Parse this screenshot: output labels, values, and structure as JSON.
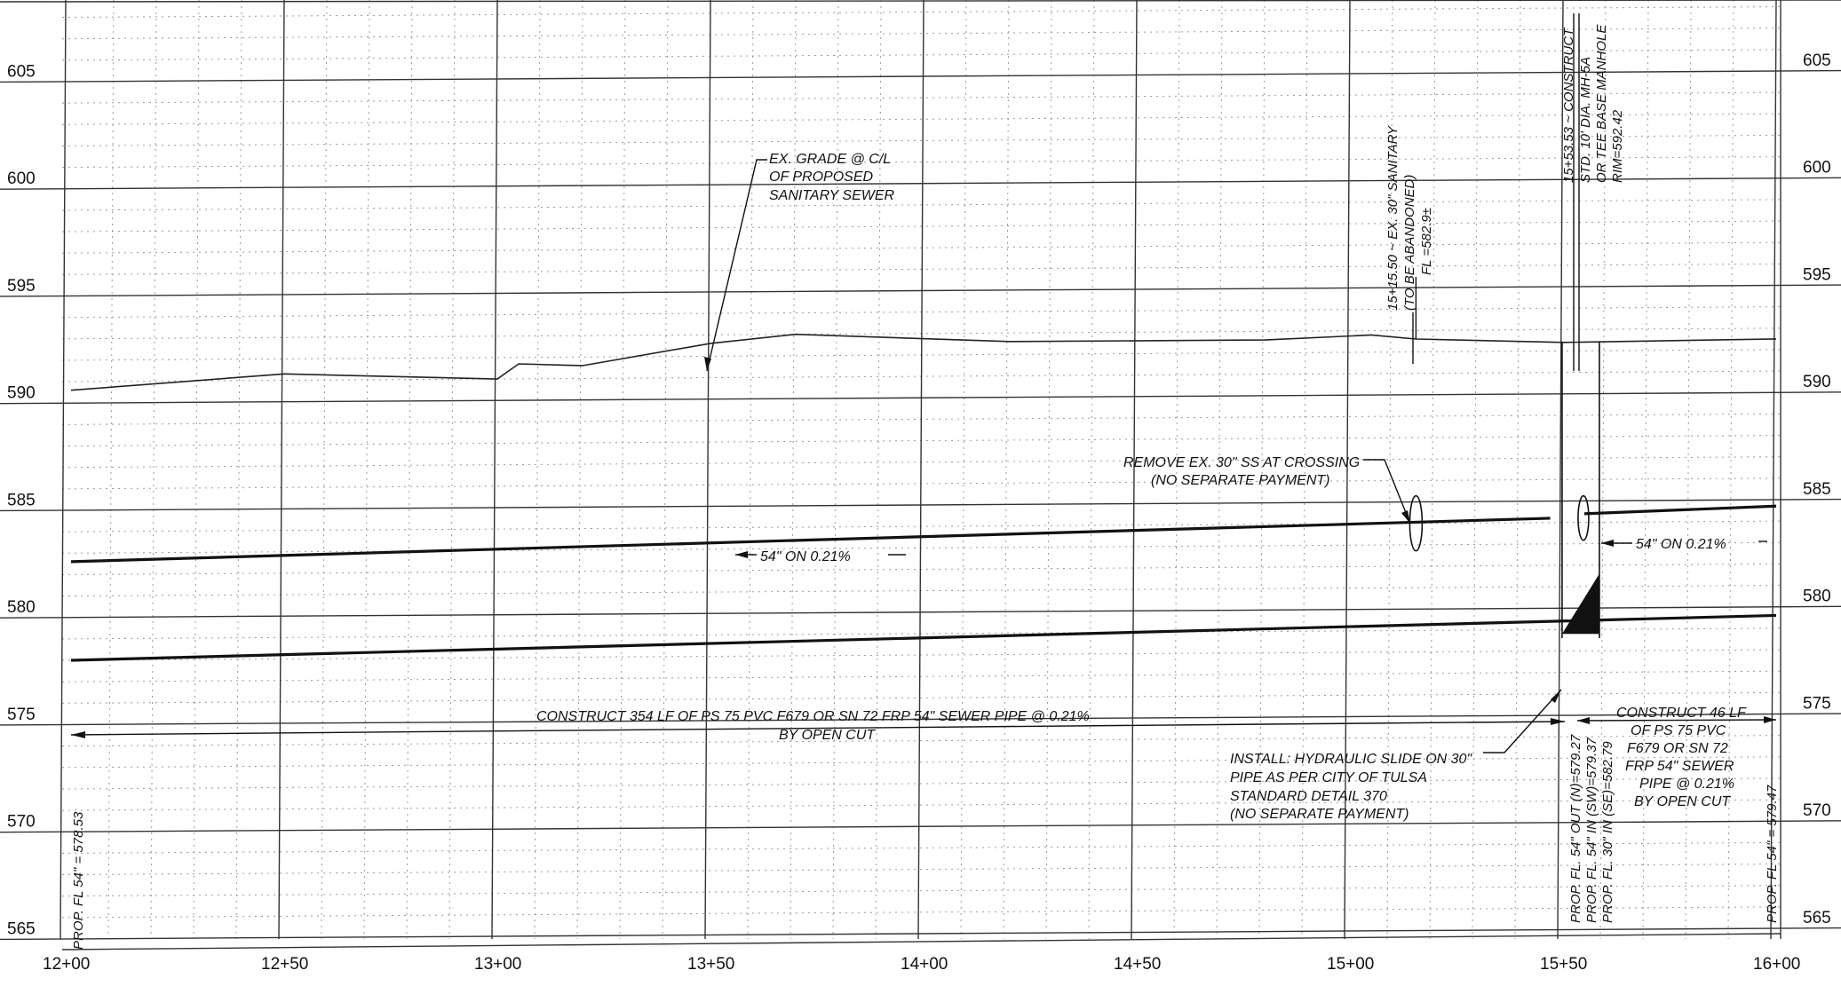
{
  "drawing": {
    "type": "sanitary-sewer-profile",
    "elevations": [
      605,
      600,
      595,
      590,
      585,
      580,
      575,
      570,
      565
    ],
    "stations": [
      "12+00",
      "12+50",
      "13+00",
      "13+50",
      "14+00",
      "14+50",
      "15+00",
      "15+50",
      "16+00"
    ],
    "ground_profile": [
      {
        "sta": 12.0,
        "elev": 590.6
      },
      {
        "sta": 12.5,
        "elev": 591.3
      },
      {
        "sta": 13.0,
        "elev": 591.0
      },
      {
        "sta": 13.05,
        "elev": 591.7
      },
      {
        "sta": 13.2,
        "elev": 591.6
      },
      {
        "sta": 13.5,
        "elev": 592.6
      },
      {
        "sta": 13.7,
        "elev": 593.0
      },
      {
        "sta": 14.2,
        "elev": 592.6
      },
      {
        "sta": 14.8,
        "elev": 592.6
      },
      {
        "sta": 15.05,
        "elev": 592.8
      },
      {
        "sta": 15.155,
        "elev": 592.6
      },
      {
        "sta": 15.5,
        "elev": 592.4
      },
      {
        "sta": 16.0,
        "elev": 592.5
      }
    ],
    "pipe_crown_left": {
      "start": {
        "sta": 12.0,
        "elev": 582.6
      },
      "end": {
        "sta": 15.47,
        "elev": 584.2
      }
    },
    "pipe_crown_right": {
      "start": {
        "sta": 15.55,
        "elev": 584.4
      },
      "end": {
        "sta": 16.0,
        "elev": 584.7
      }
    },
    "pipe_invert": {
      "start": {
        "sta": 12.0,
        "elev": 578.0
      },
      "end": {
        "sta": 16.0,
        "elev": 579.6
      }
    },
    "manhole_station": 15.5353,
    "manhole_rim": 592.42,
    "existing_crossing_station": 15.155
  },
  "labels": {
    "ex_grade_1": "EX. GRADE @ C/L",
    "ex_grade_2": "OF PROPOSED",
    "ex_grade_3": "SANITARY SEWER",
    "ex_sanitary_1": "15+15.50 ~ EX. 30\" SANITARY",
    "ex_sanitary_2": "(TO BE ABANDONED)",
    "ex_sanitary_3": "FL =582.9±",
    "manhole_1": "15+53.53 ~ CONSTRUCT",
    "manhole_2": "STD. 10' DIA. MH-5A",
    "manhole_3": "OR TEE BASE MANHOLE",
    "manhole_4": "RIM=592.42",
    "remove_1": "REMOVE EX. 30\" SS AT CROSSING",
    "remove_2": "(NO SEPARATE PAYMENT)",
    "slope_left": "54\"  ON  0.21%",
    "slope_right": "54\"  ON   0.21%",
    "construct_354_1": "CONSTRUCT 354 LF OF PS 75 PVC F679 OR SN 72 FRP 54\" SEWER PIPE @ 0.21%",
    "construct_354_2": "BY OPEN CUT",
    "construct_46_1": "CONSTRUCT 46 LF",
    "construct_46_2": "OF PS 75 PVC",
    "construct_46_3": "F679 OR SN 72",
    "construct_46_4": "FRP 54\" SEWER",
    "construct_46_5": "PIPE @ 0.21%",
    "construct_46_6": "BY OPEN CUT",
    "install_1": "INSTALL: HYDRAULIC SLIDE ON 30\"",
    "install_2": "PIPE AS PER CITY OF TULSA",
    "install_3": "STANDARD DETAIL 370",
    "install_4": "(NO SEPARATE PAYMENT)",
    "fl_left": "PROP. FL 54\" = 578.53",
    "fl_out": "PROP. FL. 54\" OUT (N)=579.27",
    "fl_in_sw": "PROP. FL. 54\" IN (SW)=579.37",
    "fl_in_se": "PROP. FL. 30\" IN (SE)=582.79",
    "fl_right": "PROP. FL 54\" = 579.47"
  }
}
